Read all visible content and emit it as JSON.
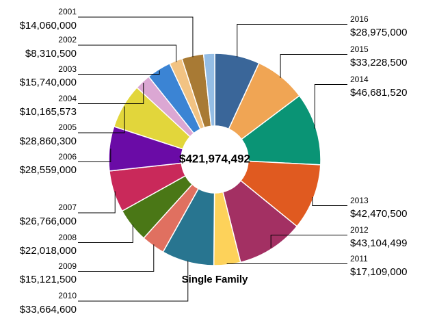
{
  "chart_data": {
    "type": "donut",
    "center_label": "$421,974,492",
    "subtitle": "Single Family",
    "categories": [
      "2016",
      "2015",
      "2014",
      "2013",
      "2012",
      "2011",
      "2010",
      "2009",
      "2008",
      "2007",
      "2006",
      "2005",
      "2004",
      "2003",
      "2002",
      "2001",
      null
    ],
    "values": [
      28975000,
      33228500,
      46681520,
      42470500,
      43104499,
      17109000,
      33664600,
      15121500,
      22018000,
      26766000,
      28559000,
      28860300,
      10165573,
      15740000,
      8310500,
      14060000,
      7140000
    ],
    "value_labels": [
      "$28,975,000",
      "$33,228,500",
      "$46,681,520",
      "$42,470,500",
      "$43,104,499",
      "$17,109,000",
      "$33,664,600",
      "$15,121,500",
      "$22,018,000",
      "$26,766,000",
      "$28,559,000",
      "$28,860,300",
      "$10,165,573",
      "$15,740,000",
      "$8,310,500",
      "$14,060,000",
      null
    ],
    "colors": [
      "#3a6699",
      "#f0a554",
      "#0a9475",
      "#e05a20",
      "#a33063",
      "#fdd25a",
      "#287590",
      "#e07060",
      "#4a7716",
      "#c9295a",
      "#6a0ba6",
      "#e2d63b",
      "#dba7d3",
      "#3b84d4",
      "#f2c383",
      "#a87a34",
      "#94bde5"
    ]
  }
}
